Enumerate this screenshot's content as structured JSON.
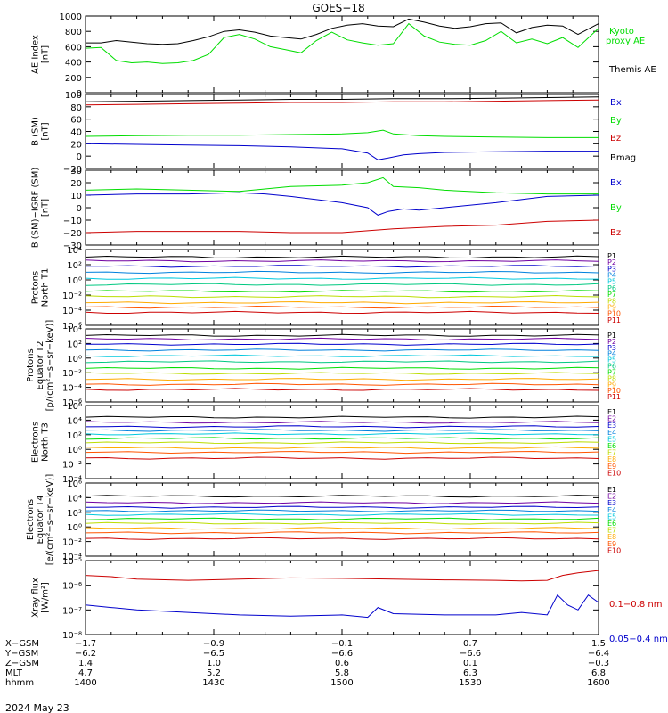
{
  "page_title": "GOES−18",
  "date": "2024 May 23",
  "axis_rows": [
    {
      "label": "X−GSM",
      "values": [
        "−1.7",
        "−0.9",
        "−0.1",
        "0.7",
        "1.5"
      ]
    },
    {
      "label": "Y−GSM",
      "values": [
        "−6.2",
        "−6.5",
        "−6.6",
        "−6.6",
        "−6.4"
      ]
    },
    {
      "label": "Z−GSM",
      "values": [
        "1.4",
        "1.0",
        "0.6",
        "0.1",
        "−0.3"
      ]
    },
    {
      "label": "MLT",
      "values": [
        "4.7",
        "5.2",
        "5.8",
        "6.3",
        "6.8"
      ]
    },
    {
      "label": "hhmm",
      "values": [
        "1400",
        "1430",
        "1500",
        "1530",
        "1600"
      ]
    }
  ],
  "colors": {
    "black": "#000000",
    "green": "#00dd00",
    "blue": "#0000cc",
    "red": "#cc0000"
  },
  "chart_data": [
    {
      "type": "line",
      "id": "ae",
      "ylabel_lines": [
        "AE Index",
        "[nT]"
      ],
      "ylim": [
        0,
        1000
      ],
      "ticks": [
        {
          "v": 0,
          "t": "0"
        },
        {
          "v": 200,
          "t": "200"
        },
        {
          "v": 400,
          "t": "400"
        },
        {
          "v": 600,
          "t": "600"
        },
        {
          "v": 800,
          "t": "800"
        },
        {
          "v": 1000,
          "t": "1000"
        }
      ],
      "series": [
        {
          "name": "Kyoto proxy AE",
          "color": "#00dd00",
          "x": [
            0,
            0.03,
            0.06,
            0.09,
            0.12,
            0.15,
            0.18,
            0.21,
            0.24,
            0.27,
            0.3,
            0.33,
            0.36,
            0.39,
            0.42,
            0.45,
            0.48,
            0.51,
            0.54,
            0.57,
            0.6,
            0.63,
            0.66,
            0.69,
            0.72,
            0.75,
            0.78,
            0.81,
            0.84,
            0.87,
            0.9,
            0.93,
            0.96,
            1.0
          ],
          "y": [
            580,
            590,
            420,
            390,
            400,
            380,
            390,
            420,
            500,
            720,
            760,
            700,
            600,
            560,
            520,
            680,
            790,
            690,
            650,
            620,
            640,
            900,
            740,
            660,
            630,
            620,
            680,
            800,
            650,
            700,
            640,
            720,
            590,
            840
          ]
        },
        {
          "name": "Themis AE",
          "color": "#000000",
          "x": [
            0,
            0.03,
            0.06,
            0.09,
            0.12,
            0.15,
            0.18,
            0.21,
            0.24,
            0.27,
            0.3,
            0.33,
            0.36,
            0.39,
            0.42,
            0.45,
            0.48,
            0.51,
            0.54,
            0.57,
            0.6,
            0.63,
            0.66,
            0.69,
            0.72,
            0.75,
            0.78,
            0.81,
            0.84,
            0.87,
            0.9,
            0.93,
            0.96,
            1.0
          ],
          "y": [
            650,
            650,
            680,
            660,
            640,
            630,
            640,
            680,
            730,
            800,
            820,
            790,
            740,
            720,
            700,
            760,
            840,
            880,
            900,
            870,
            860,
            960,
            920,
            870,
            840,
            860,
            900,
            910,
            780,
            850,
            880,
            870,
            760,
            900
          ]
        }
      ],
      "legend": [
        {
          "text": "Kyoto",
          "color": "#00dd00"
        },
        {
          "text": "proxy AE",
          "color": "#00dd00"
        },
        {
          "text": "Themis AE",
          "color": "#000000"
        }
      ]
    },
    {
      "type": "line",
      "id": "bsm",
      "ylabel_lines": [
        "B (SM)",
        "[nT]"
      ],
      "ylim": [
        -20,
        100
      ],
      "ticks": [
        {
          "v": -20,
          "t": "−20"
        },
        {
          "v": 0,
          "t": "0"
        },
        {
          "v": 20,
          "t": "20"
        },
        {
          "v": 40,
          "t": "40"
        },
        {
          "v": 60,
          "t": "60"
        },
        {
          "v": 80,
          "t": "80"
        },
        {
          "v": 100,
          "t": "100"
        }
      ],
      "series": [
        {
          "name": "Bmag",
          "color": "#000000",
          "x": [
            0,
            0.1,
            0.2,
            0.3,
            0.4,
            0.5,
            0.6,
            0.7,
            0.8,
            0.9,
            1.0
          ],
          "y": [
            88,
            89,
            90,
            91,
            92,
            92,
            93,
            93,
            94,
            95,
            96
          ]
        },
        {
          "name": "Bz",
          "color": "#cc0000",
          "x": [
            0,
            0.1,
            0.2,
            0.3,
            0.4,
            0.5,
            0.6,
            0.7,
            0.8,
            0.9,
            1.0
          ],
          "y": [
            83,
            84,
            85,
            86,
            87,
            87,
            88,
            88,
            89,
            90,
            91
          ]
        },
        {
          "name": "By",
          "color": "#00dd00",
          "x": [
            0,
            0.1,
            0.2,
            0.3,
            0.4,
            0.5,
            0.55,
            0.58,
            0.6,
            0.65,
            0.7,
            0.8,
            0.9,
            1.0
          ],
          "y": [
            32,
            33,
            34,
            34,
            35,
            36,
            38,
            42,
            36,
            33,
            32,
            31,
            30,
            30
          ]
        },
        {
          "name": "Bx",
          "color": "#0000cc",
          "x": [
            0,
            0.1,
            0.2,
            0.3,
            0.4,
            0.5,
            0.55,
            0.57,
            0.59,
            0.62,
            0.65,
            0.7,
            0.8,
            0.9,
            1.0
          ],
          "y": [
            20,
            19,
            18,
            17,
            15,
            12,
            5,
            -6,
            -3,
            2,
            4,
            6,
            7,
            8,
            8
          ]
        }
      ],
      "legend": [
        {
          "text": "Bx",
          "color": "#0000cc"
        },
        {
          "text": "By",
          "color": "#00dd00"
        },
        {
          "text": "Bz",
          "color": "#cc0000"
        },
        {
          "text": "Bmag",
          "color": "#000000"
        }
      ]
    },
    {
      "type": "line",
      "id": "bigrf",
      "ylabel_lines": [
        "B (SM)−IGRF (SM)",
        "[nT]"
      ],
      "ylim": [
        -30,
        30
      ],
      "ticks": [
        {
          "v": -30,
          "t": "−30"
        },
        {
          "v": -20,
          "t": "−20"
        },
        {
          "v": -10,
          "t": "−10"
        },
        {
          "v": 0,
          "t": "0"
        },
        {
          "v": 10,
          "t": "10"
        },
        {
          "v": 20,
          "t": "20"
        },
        {
          "v": 30,
          "t": "30"
        }
      ],
      "series": [
        {
          "name": "By",
          "color": "#00dd00",
          "x": [
            0,
            0.1,
            0.2,
            0.3,
            0.35,
            0.4,
            0.5,
            0.55,
            0.58,
            0.6,
            0.65,
            0.7,
            0.8,
            0.9,
            1.0
          ],
          "y": [
            14,
            15,
            14,
            13,
            15,
            17,
            18,
            20,
            24,
            17,
            16,
            14,
            12,
            11,
            11
          ]
        },
        {
          "name": "Bx",
          "color": "#0000cc",
          "x": [
            0,
            0.1,
            0.2,
            0.3,
            0.35,
            0.4,
            0.5,
            0.55,
            0.57,
            0.59,
            0.62,
            0.65,
            0.7,
            0.8,
            0.9,
            1.0
          ],
          "y": [
            10,
            11,
            11,
            12,
            11,
            9,
            4,
            0,
            -6,
            -3,
            -1,
            -2,
            0,
            4,
            9,
            10
          ]
        },
        {
          "name": "Bz",
          "color": "#cc0000",
          "x": [
            0,
            0.1,
            0.2,
            0.3,
            0.4,
            0.5,
            0.6,
            0.7,
            0.8,
            0.9,
            1.0
          ],
          "y": [
            -20,
            -19,
            -19,
            -19,
            -20,
            -20,
            -17,
            -15,
            -14,
            -11,
            -10
          ]
        }
      ],
      "legend": [
        {
          "text": "Bx",
          "color": "#0000cc"
        },
        {
          "text": "By",
          "color": "#00dd00"
        },
        {
          "text": "Bz",
          "color": "#cc0000"
        }
      ]
    },
    {
      "type": "line",
      "id": "p1",
      "log": true,
      "ylabel_lines": [
        "Protons",
        "North T1"
      ],
      "ylim": [
        -6,
        4
      ],
      "ticks": [
        {
          "v": 4,
          "t": "10⁴"
        },
        {
          "v": 2,
          "t": "10²"
        },
        {
          "v": 0,
          "t": "10⁰"
        },
        {
          "v": -2,
          "t": "10⁻²"
        },
        {
          "v": -4,
          "t": "10⁻⁴"
        },
        {
          "v": -6,
          "t": "10⁻⁶"
        }
      ],
      "series": [
        {
          "name": "P1",
          "color": "#000000",
          "flat": 3.0
        },
        {
          "name": "P2",
          "color": "#7000a0",
          "flat": 2.5
        },
        {
          "name": "P3",
          "color": "#0000cc",
          "flat": 1.8
        },
        {
          "name": "P4",
          "color": "#0080dd",
          "flat": 1.0
        },
        {
          "name": "P5",
          "color": "#00c8dd",
          "flat": 0.2
        },
        {
          "name": "P6",
          "color": "#00c880",
          "flat": -0.6
        },
        {
          "name": "P7",
          "color": "#00dd00",
          "flat": -1.5
        },
        {
          "name": "P8",
          "color": "#bbdd00",
          "flat": -2.2
        },
        {
          "name": "P9",
          "color": "#ffaa00",
          "flat": -3.0
        },
        {
          "name": "P10",
          "color": "#ff5500",
          "flat": -3.6
        },
        {
          "name": "P11",
          "color": "#cc0000",
          "flat": -4.3
        }
      ]
    },
    {
      "type": "line",
      "id": "p2",
      "log": true,
      "ylabel_lines": [
        "Protons",
        "Equator T2",
        "[p/(cm²−s−sr−keV)]"
      ],
      "ylim": [
        -6,
        4
      ],
      "ticks": [
        {
          "v": 4,
          "t": "10⁴"
        },
        {
          "v": 2,
          "t": "10²"
        },
        {
          "v": 0,
          "t": "10⁰"
        },
        {
          "v": -2,
          "t": "10⁻²"
        },
        {
          "v": -4,
          "t": "10⁻⁴"
        },
        {
          "v": -6,
          "t": "10⁻⁶"
        }
      ],
      "series": [
        {
          "name": "P1",
          "color": "#000000",
          "flat": 3.1
        },
        {
          "name": "P2",
          "color": "#7000a0",
          "flat": 2.6
        },
        {
          "name": "P3",
          "color": "#0000cc",
          "flat": 1.9
        },
        {
          "name": "P4",
          "color": "#0080dd",
          "flat": 1.1
        },
        {
          "name": "P5",
          "color": "#00c8dd",
          "flat": 0.3
        },
        {
          "name": "P6",
          "color": "#00c880",
          "flat": -0.5
        },
        {
          "name": "P7",
          "color": "#00dd00",
          "flat": -1.4
        },
        {
          "name": "P8",
          "color": "#bbdd00",
          "flat": -2.1
        },
        {
          "name": "P9",
          "color": "#ffaa00",
          "flat": -2.9
        },
        {
          "name": "P10",
          "color": "#ff5500",
          "flat": -3.6
        },
        {
          "name": "P11",
          "color": "#cc0000",
          "flat": -4.3
        }
      ]
    },
    {
      "type": "line",
      "id": "e1",
      "log": true,
      "ylabel_lines": [
        "Electrons",
        "North T3"
      ],
      "ylim": [
        -4,
        6
      ],
      "ticks": [
        {
          "v": 6,
          "t": "10⁶"
        },
        {
          "v": 4,
          "t": "10⁴"
        },
        {
          "v": 2,
          "t": "10²"
        },
        {
          "v": 0,
          "t": "10⁰"
        },
        {
          "v": -2,
          "t": "10⁻²"
        },
        {
          "v": -4,
          "t": "10⁻⁴"
        }
      ],
      "series": [
        {
          "name": "E1",
          "color": "#000000",
          "flat": 4.4
        },
        {
          "name": "E2",
          "color": "#7000a0",
          "flat": 3.7
        },
        {
          "name": "E3",
          "color": "#0000cc",
          "flat": 3.1
        },
        {
          "name": "E4",
          "color": "#0080dd",
          "flat": 2.6
        },
        {
          "name": "E5",
          "color": "#00c8dd",
          "flat": 2.1
        },
        {
          "name": "E6",
          "color": "#00dd00",
          "flat": 1.5
        },
        {
          "name": "E7",
          "color": "#bbdd00",
          "flat": 0.9
        },
        {
          "name": "E8",
          "color": "#ffaa00",
          "flat": 0.2
        },
        {
          "name": "E9",
          "color": "#ff5500",
          "flat": -0.4
        },
        {
          "name": "E10",
          "color": "#cc0000",
          "flat": -1.2
        }
      ]
    },
    {
      "type": "line",
      "id": "e2",
      "log": true,
      "ylabel_lines": [
        "Electrons",
        "Equator T4",
        "[e/(cm²−s−sr−keV)]"
      ],
      "ylim": [
        -4,
        6
      ],
      "ticks": [
        {
          "v": 6,
          "t": "10⁶"
        },
        {
          "v": 4,
          "t": "10⁴"
        },
        {
          "v": 2,
          "t": "10²"
        },
        {
          "v": 0,
          "t": "10⁰"
        },
        {
          "v": -2,
          "t": "10⁻²"
        },
        {
          "v": -4,
          "t": "10⁻⁴"
        }
      ],
      "series": [
        {
          "name": "E1",
          "color": "#000000",
          "flat": 4.2
        },
        {
          "name": "E2",
          "color": "#7000a0",
          "flat": 3.3
        },
        {
          "name": "E3",
          "color": "#0000cc",
          "flat": 2.7
        },
        {
          "name": "E4",
          "color": "#0080dd",
          "flat": 2.2
        },
        {
          "name": "E5",
          "color": "#00c8dd",
          "flat": 1.7
        },
        {
          "name": "E6",
          "color": "#00dd00",
          "flat": 1.1
        },
        {
          "name": "E7",
          "color": "#bbdd00",
          "flat": 0.5
        },
        {
          "name": "E8",
          "color": "#ffaa00",
          "flat": -0.2
        },
        {
          "name": "E9",
          "color": "#ff5500",
          "flat": -0.8
        },
        {
          "name": "E10",
          "color": "#cc0000",
          "flat": -1.6
        }
      ]
    },
    {
      "type": "line",
      "id": "xray",
      "log": true,
      "ylabel_lines": [
        "Xray flux",
        "[W/m²]"
      ],
      "ylim": [
        -8,
        -5
      ],
      "ticks": [
        {
          "v": -5,
          "t": "10⁻⁵"
        },
        {
          "v": -6,
          "t": "10⁻⁶"
        },
        {
          "v": -7,
          "t": "10⁻⁷"
        },
        {
          "v": -8,
          "t": "10⁻⁸"
        }
      ],
      "series": [
        {
          "name": "0.1−0.8 nm",
          "color": "#cc0000",
          "x": [
            0,
            0.05,
            0.1,
            0.2,
            0.3,
            0.4,
            0.5,
            0.6,
            0.7,
            0.8,
            0.85,
            0.9,
            0.93,
            0.96,
            1.0
          ],
          "y": [
            -5.6,
            -5.65,
            -5.75,
            -5.8,
            -5.75,
            -5.7,
            -5.72,
            -5.75,
            -5.78,
            -5.8,
            -5.82,
            -5.8,
            -5.6,
            -5.5,
            -5.4
          ]
        },
        {
          "name": "0.05−0.4 nm",
          "color": "#0000cc",
          "x": [
            0,
            0.05,
            0.1,
            0.2,
            0.3,
            0.4,
            0.5,
            0.55,
            0.57,
            0.6,
            0.7,
            0.8,
            0.85,
            0.9,
            0.92,
            0.94,
            0.96,
            0.98,
            1.0
          ],
          "y": [
            -6.8,
            -6.9,
            -7.0,
            -7.1,
            -7.2,
            -7.25,
            -7.2,
            -7.3,
            -6.9,
            -7.15,
            -7.2,
            -7.2,
            -7.1,
            -7.2,
            -6.4,
            -6.8,
            -7.0,
            -6.4,
            -6.7
          ]
        }
      ],
      "legend": [
        {
          "text": "0.1−0.8 nm",
          "color": "#cc0000"
        },
        {
          "text": "0.05−0.4 nm",
          "color": "#0000cc"
        }
      ]
    }
  ]
}
